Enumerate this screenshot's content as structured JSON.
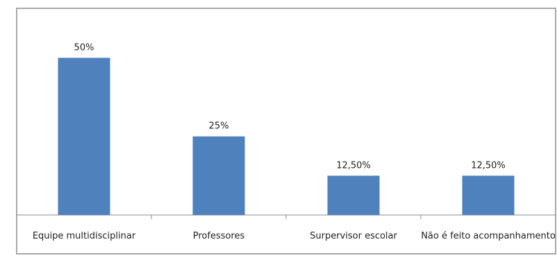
{
  "chart_data": {
    "type": "bar",
    "categories": [
      "Equipe multidisciplinar",
      "Professores",
      "Surpervisor escolar",
      "Não é feito acompanhamento"
    ],
    "values": [
      50,
      25,
      12.5,
      12.5
    ],
    "data_labels": [
      "50%",
      "25%",
      "12,50%",
      "12,50%"
    ],
    "ylim": [
      0,
      60
    ],
    "grid": false,
    "legend": "none",
    "bar_color": "#4f81bd"
  }
}
